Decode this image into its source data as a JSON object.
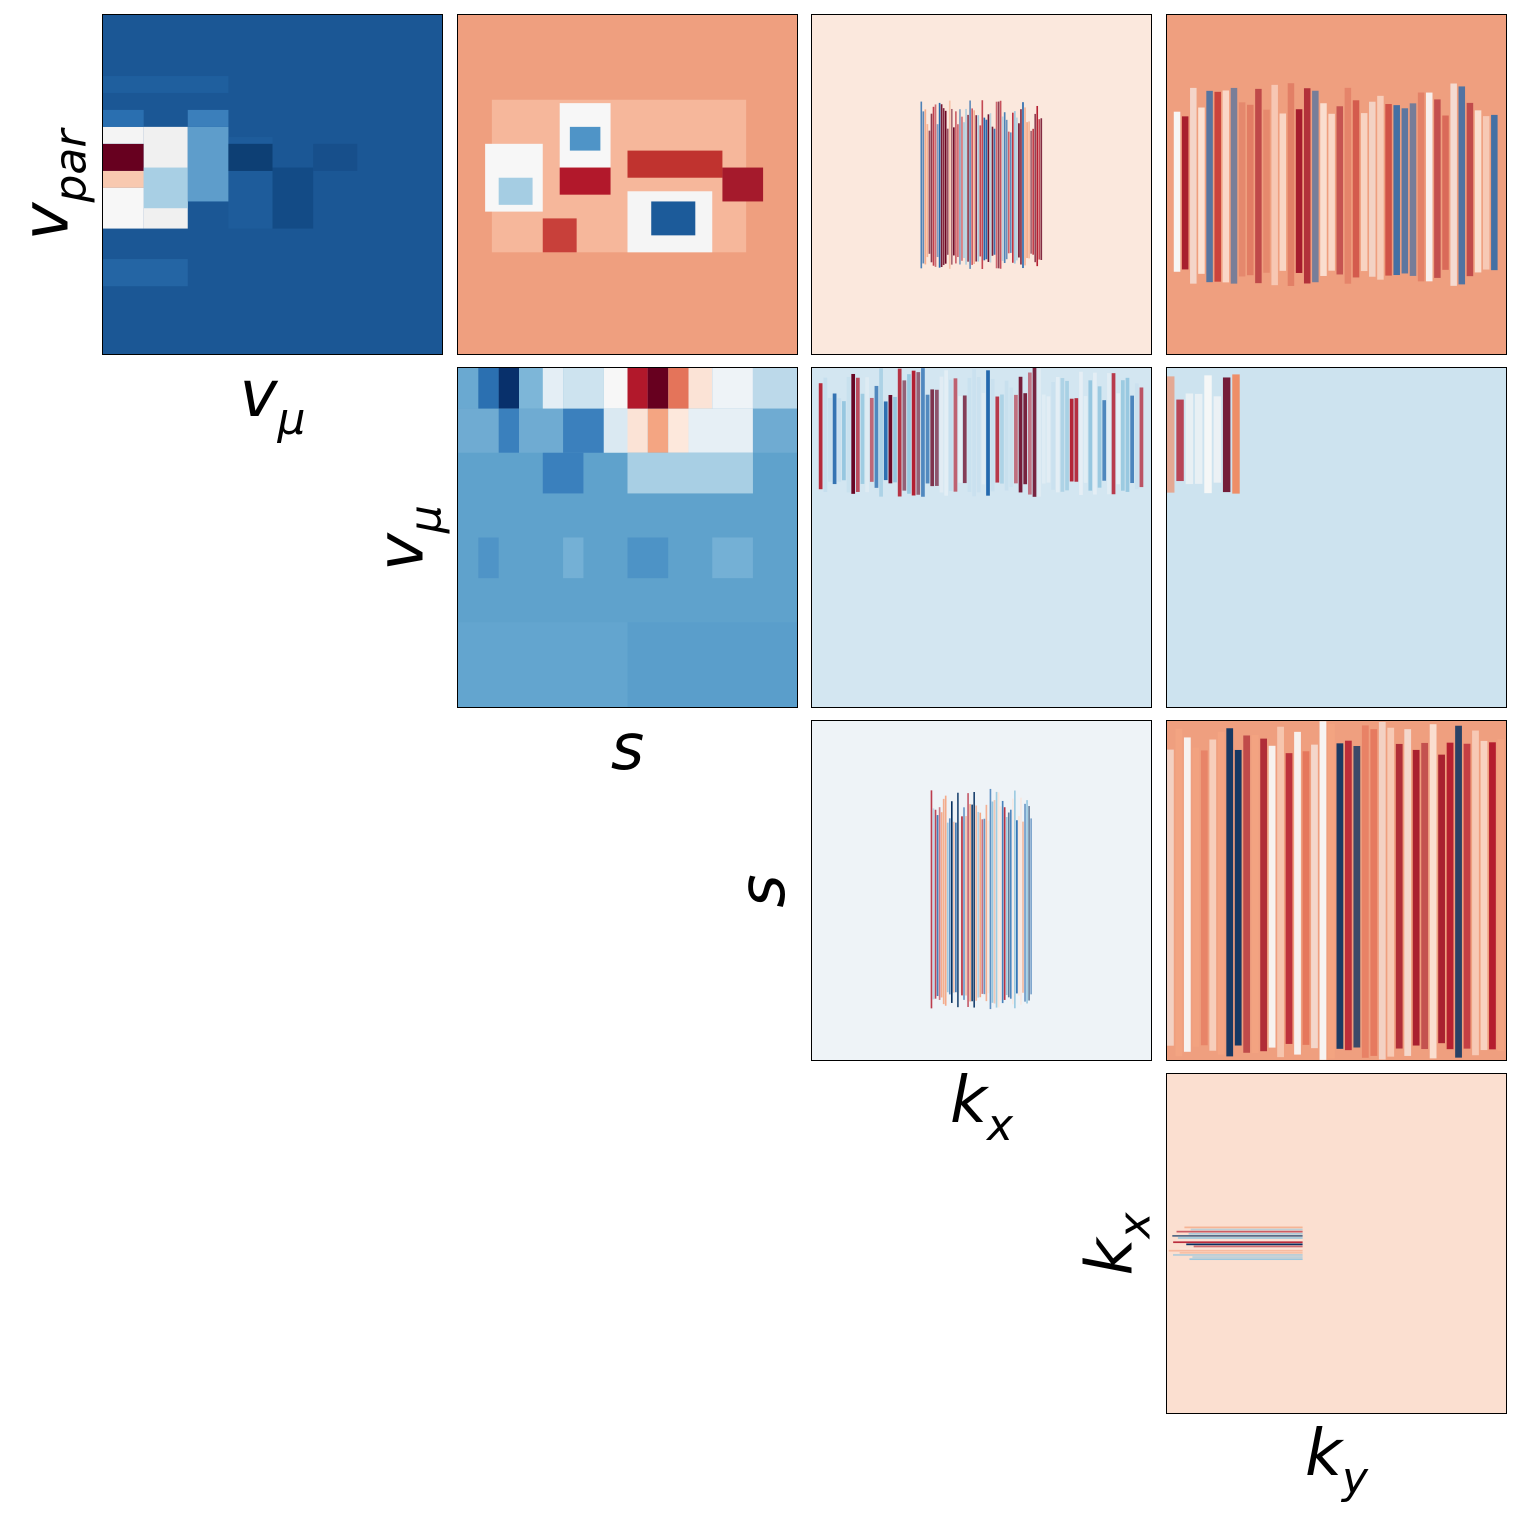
{
  "chart_data": [
    {
      "type": "heatmap",
      "id": "p00",
      "row": 0,
      "col": 0,
      "xlabel": {
        "main": "v",
        "sub": "μ"
      },
      "ylabel": {
        "main": "v",
        "sub": "par"
      },
      "colormap": "RdBu_r",
      "background": "#1b5795",
      "regions": [
        {
          "x": [
            0,
            0.12
          ],
          "y": [
            0.38,
            0.46
          ],
          "color": "#67001f"
        },
        {
          "x": [
            0,
            0.12
          ],
          "y": [
            0.33,
            0.38
          ],
          "color": "#f4f4f4"
        },
        {
          "x": [
            0,
            0.12
          ],
          "y": [
            0.46,
            0.51
          ],
          "color": "#f8c9b0"
        },
        {
          "x": [
            0,
            0.12
          ],
          "y": [
            0.51,
            0.63
          ],
          "color": "#f7f7f7"
        },
        {
          "x": [
            0,
            0.12
          ],
          "y": [
            0.28,
            0.33
          ],
          "color": "#2a6fb0"
        },
        {
          "x": [
            0.12,
            0.25
          ],
          "y": [
            0.33,
            0.63
          ],
          "color": "#f0f0f0"
        },
        {
          "x": [
            0.12,
            0.25
          ],
          "y": [
            0.45,
            0.57
          ],
          "color": "#a8cfe4"
        },
        {
          "x": [
            0.25,
            0.37
          ],
          "y": [
            0.33,
            0.55
          ],
          "color": "#5e9dcb"
        },
        {
          "x": [
            0.25,
            0.37
          ],
          "y": [
            0.28,
            0.33
          ],
          "color": "#3b7fbb"
        },
        {
          "x": [
            0.37,
            0.5
          ],
          "y": [
            0.36,
            0.63
          ],
          "color": "#1e5c9b"
        },
        {
          "x": [
            0.37,
            0.5
          ],
          "y": [
            0.38,
            0.46
          ],
          "color": "#0d3f74"
        },
        {
          "x": [
            0.5,
            0.62
          ],
          "y": [
            0.45,
            0.63
          ],
          "color": "#134b86"
        },
        {
          "x": [
            0.62,
            0.75
          ],
          "y": [
            0.38,
            0.46
          ],
          "color": "#174f8b"
        },
        {
          "x": [
            0,
            0.25
          ],
          "y": [
            0.72,
            0.8
          ],
          "color": "#2465a4"
        },
        {
          "x": [
            0,
            0.37
          ],
          "y": [
            0.18,
            0.23
          ],
          "color": "#1f5f9e"
        }
      ]
    },
    {
      "type": "heatmap",
      "id": "p01",
      "row": 0,
      "col": 1,
      "colormap": "RdBu_r",
      "background": "#ef9f7f",
      "regions": [
        {
          "x": [
            0.1,
            0.85
          ],
          "y": [
            0.25,
            0.7
          ],
          "color": "#f6b79b"
        },
        {
          "x": [
            0.08,
            0.25
          ],
          "y": [
            0.38,
            0.58
          ],
          "color": "#f7f7f7"
        },
        {
          "x": [
            0.12,
            0.22
          ],
          "y": [
            0.48,
            0.56
          ],
          "color": "#a5cde3"
        },
        {
          "x": [
            0.3,
            0.45
          ],
          "y": [
            0.26,
            0.45
          ],
          "color": "#f7f7f7"
        },
        {
          "x": [
            0.33,
            0.42
          ],
          "y": [
            0.33,
            0.4
          ],
          "color": "#4f94c7"
        },
        {
          "x": [
            0.3,
            0.45
          ],
          "y": [
            0.45,
            0.53
          ],
          "color": "#b2182b"
        },
        {
          "x": [
            0.5,
            0.75
          ],
          "y": [
            0.52,
            0.7
          ],
          "color": "#f5f5f5"
        },
        {
          "x": [
            0.57,
            0.7
          ],
          "y": [
            0.55,
            0.65
          ],
          "color": "#1c5b9a"
        },
        {
          "x": [
            0.5,
            0.78
          ],
          "y": [
            0.4,
            0.48
          ],
          "color": "#c0332f"
        },
        {
          "x": [
            0.25,
            0.35
          ],
          "y": [
            0.6,
            0.7
          ],
          "color": "#c8403a"
        },
        {
          "x": [
            0.78,
            0.9
          ],
          "y": [
            0.45,
            0.55
          ],
          "color": "#a51a2c"
        }
      ]
    },
    {
      "type": "heatmap",
      "id": "p02",
      "row": 0,
      "col": 2,
      "colormap": "RdBu_r",
      "background": "#fbe8dd",
      "stripes": {
        "orientation": "vertical",
        "x": [
          0.32,
          0.68
        ],
        "y": [
          0.25,
          0.75
        ],
        "count": 60,
        "colors": [
          "#b2182b",
          "#2166ac",
          "#f4a582",
          "#92c5de",
          "#67001f"
        ]
      }
    },
    {
      "type": "heatmap",
      "id": "p03",
      "row": 0,
      "col": 3,
      "colormap": "RdBu_r",
      "background": "#ef9f7f",
      "stripes": {
        "orientation": "vertical",
        "x": [
          0.02,
          0.98
        ],
        "y": [
          0.2,
          0.8
        ],
        "count": 40,
        "colors": [
          "#fbe3d6",
          "#c8403a",
          "#f7f7f7",
          "#2166ac",
          "#e07a62",
          "#a51a2c"
        ]
      }
    },
    {
      "type": "heatmap",
      "id": "p11",
      "row": 1,
      "col": 1,
      "xlabel": {
        "main": "s",
        "sub": ""
      },
      "ylabel": {
        "main": "v",
        "sub": "μ"
      },
      "colormap": "RdBu_r",
      "background": "#5fa2cc",
      "regions": [
        {
          "x": [
            0,
            0.06
          ],
          "y": [
            0,
            0.12
          ],
          "color": "#6aa9d1"
        },
        {
          "x": [
            0.06,
            0.12
          ],
          "y": [
            0,
            0.12
          ],
          "color": "#2b70b1"
        },
        {
          "x": [
            0.12,
            0.18
          ],
          "y": [
            0,
            0.12
          ],
          "color": "#08306b"
        },
        {
          "x": [
            0.18,
            0.25
          ],
          "y": [
            0,
            0.12
          ],
          "color": "#7db6d8"
        },
        {
          "x": [
            0.25,
            0.31
          ],
          "y": [
            0,
            0.12
          ],
          "color": "#e4eef5"
        },
        {
          "x": [
            0.31,
            0.43
          ],
          "y": [
            0,
            0.12
          ],
          "color": "#cde3ef"
        },
        {
          "x": [
            0.43,
            0.5
          ],
          "y": [
            0,
            0.12
          ],
          "color": "#f7f7f7"
        },
        {
          "x": [
            0.5,
            0.56
          ],
          "y": [
            0,
            0.12
          ],
          "color": "#b2182b"
        },
        {
          "x": [
            0.56,
            0.62
          ],
          "y": [
            0,
            0.12
          ],
          "color": "#67001f"
        },
        {
          "x": [
            0.62,
            0.68
          ],
          "y": [
            0,
            0.12
          ],
          "color": "#e4745a"
        },
        {
          "x": [
            0.68,
            0.75
          ],
          "y": [
            0,
            0.12
          ],
          "color": "#fbe3d6"
        },
        {
          "x": [
            0.75,
            0.87
          ],
          "y": [
            0,
            0.12
          ],
          "color": "#eef3f7"
        },
        {
          "x": [
            0.87,
            1
          ],
          "y": [
            0,
            0.12
          ],
          "color": "#bcd9ea"
        },
        {
          "x": [
            0,
            0.31
          ],
          "y": [
            0.12,
            0.25
          ],
          "color": "#6fabd2"
        },
        {
          "x": [
            0.12,
            0.18
          ],
          "y": [
            0.12,
            0.25
          ],
          "color": "#3a80bd"
        },
        {
          "x": [
            0.31,
            0.43
          ],
          "y": [
            0.12,
            0.25
          ],
          "color": "#3b80bd"
        },
        {
          "x": [
            0.43,
            0.5
          ],
          "y": [
            0.12,
            0.25
          ],
          "color": "#dae9f2"
        },
        {
          "x": [
            0.5,
            0.56
          ],
          "y": [
            0.12,
            0.25
          ],
          "color": "#fbe3d6"
        },
        {
          "x": [
            0.56,
            0.62
          ],
          "y": [
            0.12,
            0.25
          ],
          "color": "#f4a582"
        },
        {
          "x": [
            0.62,
            0.68
          ],
          "y": [
            0.12,
            0.25
          ],
          "color": "#fde8dc"
        },
        {
          "x": [
            0.68,
            0.87
          ],
          "y": [
            0.12,
            0.25
          ],
          "color": "#e6eff5"
        },
        {
          "x": [
            0.87,
            1
          ],
          "y": [
            0.12,
            0.25
          ],
          "color": "#6fabd2"
        },
        {
          "x": [
            0.25,
            0.37
          ],
          "y": [
            0.25,
            0.37
          ],
          "color": "#3a80bd"
        },
        {
          "x": [
            0.5,
            0.87
          ],
          "y": [
            0.25,
            0.37
          ],
          "color": "#a8cfe4"
        },
        {
          "x": [
            0.06,
            0.12
          ],
          "y": [
            0.5,
            0.62
          ],
          "color": "#4f94c7"
        },
        {
          "x": [
            0.31,
            0.37
          ],
          "y": [
            0.5,
            0.62
          ],
          "color": "#74b0d5"
        },
        {
          "x": [
            0.5,
            0.62
          ],
          "y": [
            0.5,
            0.62
          ],
          "color": "#4d93c6"
        },
        {
          "x": [
            0.75,
            0.87
          ],
          "y": [
            0.5,
            0.62
          ],
          "color": "#74b0d5"
        },
        {
          "x": [
            0.5,
            1
          ],
          "y": [
            0.75,
            1
          ],
          "color": "#5a9ecb"
        },
        {
          "x": [
            0,
            0.5
          ],
          "y": [
            0.75,
            1
          ],
          "color": "#63a5cf"
        }
      ]
    },
    {
      "type": "heatmap",
      "id": "p12",
      "row": 1,
      "col": 2,
      "colormap": "RdBu_r",
      "background": "#d3e6f1",
      "stripes": {
        "orientation": "vertical",
        "x": [
          0.02,
          0.98
        ],
        "y": [
          0,
          0.38
        ],
        "count": 70,
        "colors": [
          "#c6dfee",
          "#2166ac",
          "#b2182b",
          "#92c5de",
          "#67001f",
          "#e6eff5"
        ]
      }
    },
    {
      "type": "heatmap",
      "id": "p13",
      "row": 1,
      "col": 3,
      "colormap": "RdBu_r",
      "background": "#cde3ef",
      "stripes": {
        "orientation": "vertical",
        "x": [
          0.0,
          0.22
        ],
        "y": [
          0,
          0.38
        ],
        "count": 8,
        "colors": [
          "#67001f",
          "#f4a582",
          "#2166ac",
          "#ef8a62",
          "#053061",
          "#b2182b",
          "#f7f7f7",
          "#92c5de"
        ]
      }
    },
    {
      "type": "heatmap",
      "id": "p22",
      "row": 2,
      "col": 2,
      "xlabel": {
        "main": "k",
        "sub": "x"
      },
      "ylabel": {
        "main": "s",
        "sub": ""
      },
      "colormap": "RdBu_r",
      "background": "#eef3f7",
      "stripes": {
        "orientation": "vertical",
        "x": [
          0.35,
          0.65
        ],
        "y": [
          0.2,
          0.85
        ],
        "count": 50,
        "colors": [
          "#f4a582",
          "#92c5de",
          "#2166ac",
          "#b2182b",
          "#fbe3d6",
          "#053061"
        ]
      }
    },
    {
      "type": "heatmap",
      "id": "p23",
      "row": 2,
      "col": 3,
      "colormap": "RdBu_r",
      "background": "#ef9f7f",
      "stripes": {
        "orientation": "vertical",
        "x": [
          0.0,
          1.0
        ],
        "y": [
          0.0,
          1.0
        ],
        "count": 40,
        "colors": [
          "#b2182b",
          "#fbe3d6",
          "#e4745a",
          "#f7f7f7",
          "#053061",
          "#a51a2c",
          "#f4a582"
        ]
      }
    },
    {
      "type": "heatmap",
      "id": "p33",
      "row": 3,
      "col": 3,
      "xlabel": {
        "main": "k",
        "sub": "y"
      },
      "ylabel": {
        "main": "k",
        "sub": "x"
      },
      "colormap": "RdBu_r",
      "background": "#fbdfd0",
      "stripes": {
        "orientation": "horizontal",
        "x": [
          0.0,
          0.4
        ],
        "y": [
          0.45,
          0.55
        ],
        "count": 16,
        "colors": [
          "#053061",
          "#b2182b",
          "#92c5de",
          "#f4a582",
          "#2166ac",
          "#fbe3d6"
        ]
      }
    }
  ]
}
